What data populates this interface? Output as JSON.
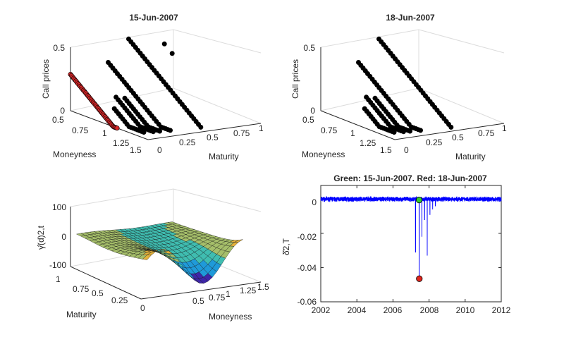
{
  "figure": {
    "background": "#ffffff",
    "axis_color": "#262626",
    "grid_color": "#dcdcdc"
  },
  "chart_data": [
    {
      "id": "top-left",
      "type": "scatter",
      "view": "3d",
      "title": "15-Jun-2007",
      "zlabel": "Call prices",
      "xlabel": "Moneyness",
      "ylabel": "Maturity",
      "xlim": [
        0.5,
        1.5
      ],
      "ylim": [
        0,
        1
      ],
      "zlim": [
        0,
        0.5
      ],
      "x_ticks": [
        "0.5",
        "0.75",
        "1",
        "1.25",
        "1.5"
      ],
      "y_ticks": [
        "0",
        "0.25",
        "0.5",
        "0.75",
        "1"
      ],
      "z_ticks": [
        "0",
        "0.5"
      ],
      "grid": true,
      "series": [
        {
          "maturity": 0.0,
          "color": "#d62728",
          "x_range": [
            0.5,
            1.1
          ],
          "count": 44
        },
        {
          "maturity": 0.1,
          "color": "#000000",
          "x_range": [
            0.92,
            1.3
          ],
          "count": 15
        },
        {
          "maturity": 0.17,
          "color": "#000000",
          "x_range": [
            0.84,
            1.32
          ],
          "count": 18
        },
        {
          "maturity": 0.22,
          "color": "#000000",
          "x_range": [
            0.88,
            1.33
          ],
          "count": 17
        },
        {
          "maturity": 0.3,
          "color": "#000000",
          "x_range": [
            0.55,
            1.35
          ],
          "count": 28
        },
        {
          "maturity": 0.55,
          "color": "#000000",
          "x_range": [
            0.45,
            1.38
          ],
          "count": 32
        },
        {
          "maturity": 0.75,
          "color": "#000000",
          "x_range": [
            0.62,
            0.72
          ],
          "count": 2
        }
      ]
    },
    {
      "id": "top-right",
      "type": "scatter",
      "view": "3d",
      "title": "18-Jun-2007",
      "zlabel": "Call prices",
      "xlabel": "Moneyness",
      "ylabel": "Maturity",
      "xlim": [
        0.5,
        1.5
      ],
      "ylim": [
        0,
        1
      ],
      "zlim": [
        0,
        0.5
      ],
      "x_ticks": [
        "0.5",
        "0.75",
        "1",
        "1.25",
        "1.5"
      ],
      "y_ticks": [
        "0",
        "0.25",
        "0.5",
        "0.75",
        "1"
      ],
      "z_ticks": [
        "0",
        "0.5"
      ],
      "grid": true,
      "series": [
        {
          "maturity": 0.1,
          "color": "#000000",
          "x_range": [
            0.92,
            1.3
          ],
          "count": 15
        },
        {
          "maturity": 0.17,
          "color": "#000000",
          "x_range": [
            0.84,
            1.32
          ],
          "count": 18
        },
        {
          "maturity": 0.22,
          "color": "#000000",
          "x_range": [
            0.88,
            1.33
          ],
          "count": 17
        },
        {
          "maturity": 0.3,
          "color": "#000000",
          "x_range": [
            0.55,
            1.35
          ],
          "count": 28
        },
        {
          "maturity": 0.55,
          "color": "#000000",
          "x_range": [
            0.45,
            1.38
          ],
          "count": 32
        }
      ]
    },
    {
      "id": "bottom-left",
      "type": "surface",
      "view": "3d",
      "title": "",
      "zlabel": "γ̂(d)2,t",
      "ylabel": "Maturity",
      "xlabel": "Moneyness",
      "ylim": [
        0,
        1
      ],
      "xlim": [
        0.5,
        1.5
      ],
      "zlim": [
        -100,
        100
      ],
      "y_ticks": [
        "0",
        "0.25",
        "0.5",
        "0.75",
        "1"
      ],
      "x_ticks": [
        "0.5",
        "0.75",
        "1",
        "1.25",
        "1.5"
      ],
      "z_ticks": [
        "-100",
        "0",
        "100"
      ],
      "grid": true,
      "colormap": [
        "#3e26a8",
        "#1f9ad9",
        "#3fbdb0",
        "#a5be6a",
        "#e3b23c",
        "#f9fb15"
      ]
    },
    {
      "id": "bottom-right",
      "type": "line",
      "title": "Green: 15-Jun-2007. Red: 18-Jun-2007",
      "ylabel": "δ̂2,T",
      "xlabel": "",
      "xlim": [
        2002,
        2012
      ],
      "ylim": [
        -0.06,
        0.008
      ],
      "x_ticks": [
        "2002",
        "2004",
        "2006",
        "2008",
        "2010",
        "2012"
      ],
      "y_ticks": [
        "0",
        "-0.02",
        "-0.04",
        "-0.06"
      ],
      "grid": false,
      "series": [
        {
          "color": "#0000ff",
          "baseline_noise": 0.0012,
          "spikes": [
            {
              "x": 2007.25,
              "y": -0.031
            },
            {
              "x": 2007.45,
              "y": -0.046
            },
            {
              "x": 2007.6,
              "y": -0.022
            },
            {
              "x": 2007.75,
              "y": -0.012
            },
            {
              "x": 2007.9,
              "y": -0.033
            },
            {
              "x": 2008.05,
              "y": -0.009
            },
            {
              "x": 2008.2,
              "y": -0.006
            },
            {
              "x": 2008.35,
              "y": -0.004
            }
          ]
        }
      ],
      "markers": [
        {
          "label": "15-Jun-2007",
          "x": 2007.45,
          "y": -0.0005,
          "color": "#33cc33"
        },
        {
          "label": "18-Jun-2007",
          "x": 2007.46,
          "y": -0.0465,
          "color": "#e0261e"
        }
      ]
    }
  ]
}
